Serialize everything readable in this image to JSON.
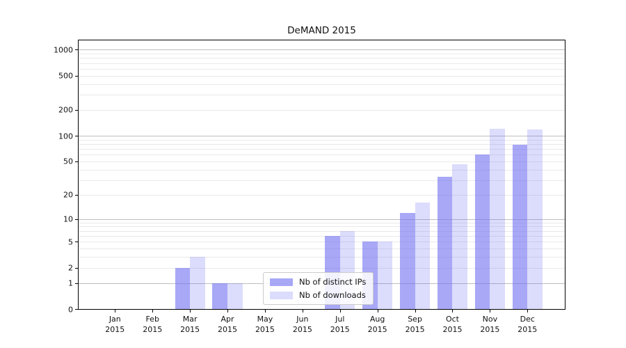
{
  "chart_data": {
    "type": "bar",
    "title": "DeMAND 2015",
    "categories": [
      "Jan",
      "Feb",
      "Mar",
      "Apr",
      "May",
      "Jun",
      "Jul",
      "Aug",
      "Sep",
      "Oct",
      "Nov",
      "Dec"
    ],
    "category_year": "2015",
    "series": [
      {
        "name": "Nb of distinct IPs",
        "color": "rgba(110,110,242,0.60)",
        "values": [
          0,
          0,
          2,
          1,
          0,
          0,
          6,
          5,
          12,
          33,
          60,
          78
        ]
      },
      {
        "name": "Nb of downloads",
        "color": "rgba(110,110,242,0.24)",
        "values": [
          0,
          0,
          3,
          1,
          0,
          0,
          7,
          5,
          16,
          46,
          120,
          118
        ]
      }
    ],
    "xlabel": "",
    "ylabel": "",
    "y_scale": "log10(value+1)",
    "y_ticks": [
      0,
      1,
      2,
      5,
      10,
      20,
      50,
      100,
      200,
      500,
      1000
    ],
    "y_minor_gridlines": [
      2,
      3,
      4,
      5,
      6,
      7,
      8,
      9,
      20,
      30,
      40,
      50,
      60,
      70,
      80,
      90,
      200,
      300,
      400,
      500,
      600,
      700,
      800,
      900
    ],
    "y_major_gridlines": [
      1,
      10,
      100,
      1000
    ],
    "ylim": [
      0,
      1280
    ],
    "grid": true,
    "legend_position": "lower center"
  },
  "colors": {
    "background": "#ffffff",
    "major_grid": "#bdbdbd",
    "minor_grid": "#e9e9e9",
    "axis": "#000000",
    "text": "#111111",
    "bar_dark_rendered": "#a8a8f7",
    "bar_light_rendered": "#dcdcf9"
  }
}
